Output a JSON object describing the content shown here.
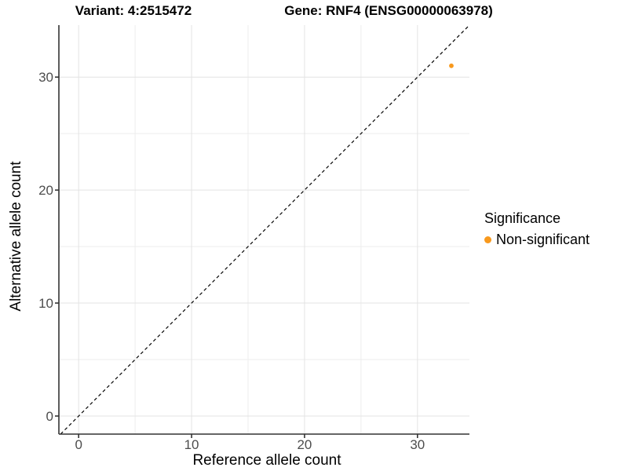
{
  "titles": {
    "variant": "Variant: 4:2515472",
    "gene": "Gene: RNF4 (ENSG00000063978)"
  },
  "axes": {
    "x_label": "Reference allele count",
    "y_label": "Alternative allele count"
  },
  "legend": {
    "title": "Significance",
    "items": [
      {
        "label": "Non-significant",
        "color": "#F8991D"
      }
    ]
  },
  "colors": {
    "point": "#F8991D",
    "grid_major": "#E3E3E3",
    "grid_minor": "#EDEDED",
    "axis_line": "#333333",
    "tick_text": "#4d4d4d",
    "reference_line": "#000000"
  },
  "chart_data": {
    "type": "scatter",
    "title_left": "Variant: 4:2515472",
    "title_right": "Gene: RNF4 (ENSG00000063978)",
    "xlabel": "Reference allele count",
    "ylabel": "Alternative allele count",
    "xlim": [
      -1.75,
      34.6
    ],
    "ylim": [
      -1.6,
      34.6
    ],
    "x_major_ticks": [
      0,
      10,
      20,
      30
    ],
    "y_major_ticks": [
      0,
      10,
      20,
      30
    ],
    "x_minor_ticks": [
      5,
      15,
      25
    ],
    "y_minor_ticks": [
      5,
      15,
      25
    ],
    "grid": true,
    "legend_position": "right",
    "legend_title": "Significance",
    "series": [
      {
        "name": "Non-significant",
        "color": "#F8991D",
        "points": [
          {
            "x": 33,
            "y": 31
          }
        ]
      }
    ],
    "reference_line": {
      "equation": "y = x",
      "style": "dashed",
      "color": "#000000"
    }
  }
}
